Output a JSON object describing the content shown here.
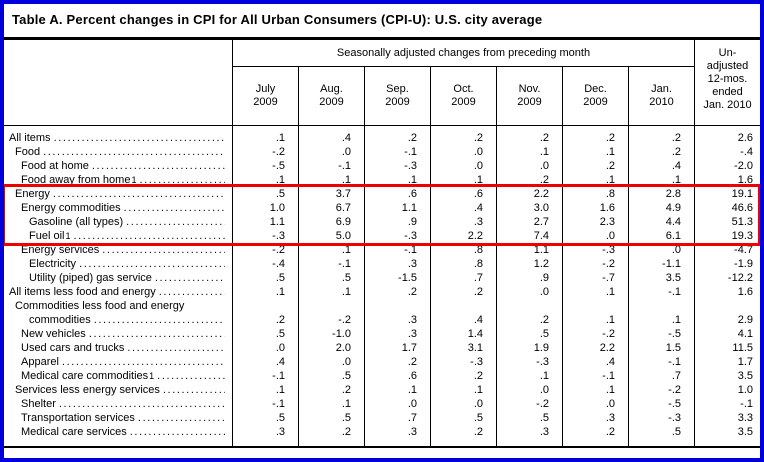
{
  "title": "Table A. Percent changes in CPI for All Urban Consumers (CPI-U): U.S. city average",
  "header": {
    "group_label": "Seasonally adjusted changes from preceding month",
    "columns": [
      [
        "July",
        "2009"
      ],
      [
        "Aug.",
        "2009"
      ],
      [
        "Sep.",
        "2009"
      ],
      [
        "Oct.",
        "2009"
      ],
      [
        "Nov.",
        "2009"
      ],
      [
        "Dec.",
        "2009"
      ],
      [
        "Jan.",
        "2010"
      ]
    ],
    "unadjusted": [
      "Un-",
      "adjusted",
      "12-mos.",
      "ended",
      "Jan. 2010"
    ]
  },
  "table": {
    "rows": [
      {
        "label": "All items",
        "indent": 0,
        "values": [
          ".1",
          ".4",
          ".2",
          ".2",
          ".2",
          ".2",
          ".2",
          "2.6"
        ]
      },
      {
        "label": "Food",
        "indent": 1,
        "values": [
          "-.2",
          ".0",
          "-.1",
          ".0",
          ".1",
          ".1",
          ".2",
          "-.4"
        ]
      },
      {
        "label": "Food at home",
        "indent": 2,
        "values": [
          "-.5",
          "-.1",
          "-.3",
          ".0",
          ".0",
          ".2",
          ".4",
          "-2.0"
        ]
      },
      {
        "label": "Food away from home",
        "sup": "1",
        "indent": 2,
        "values": [
          ".1",
          ".1",
          ".1",
          ".1",
          ".2",
          ".1",
          ".1",
          "1.6"
        ]
      },
      {
        "label": "Energy",
        "indent": 1,
        "values": [
          ".5",
          "3.7",
          ".6",
          ".6",
          "2.2",
          ".8",
          "2.8",
          "19.1"
        ]
      },
      {
        "label": "Energy commodities",
        "indent": 2,
        "values": [
          "1.0",
          "6.7",
          "1.1",
          ".4",
          "3.0",
          "1.6",
          "4.9",
          "46.6"
        ]
      },
      {
        "label": "Gasoline (all types)",
        "indent": 3,
        "values": [
          "1.1",
          "6.9",
          ".9",
          ".3",
          "2.7",
          "2.3",
          "4.4",
          "51.3"
        ]
      },
      {
        "label": "Fuel oil",
        "sup": "1",
        "indent": 3,
        "values": [
          "-.3",
          "5.0",
          "-.3",
          "2.2",
          "7.4",
          ".0",
          "6.1",
          "19.3"
        ]
      },
      {
        "label": "Energy services",
        "indent": 2,
        "values": [
          "-.2",
          ".1",
          "-.1",
          ".8",
          "1.1",
          "-.3",
          ".0",
          "-4.7"
        ]
      },
      {
        "label": "Electricity",
        "indent": 3,
        "values": [
          "-.4",
          "-.1",
          ".3",
          ".8",
          "1.2",
          "-.2",
          "-1.1",
          "-1.9"
        ]
      },
      {
        "label": "Utility (piped) gas service",
        "indent": 3,
        "values": [
          ".5",
          ".5",
          "-1.5",
          ".7",
          ".9",
          "-.7",
          "3.5",
          "-12.2"
        ]
      },
      {
        "label": "All items less food and energy",
        "indent": 0,
        "values": [
          ".1",
          ".1",
          ".2",
          ".2",
          ".0",
          ".1",
          "-.1",
          "1.6"
        ]
      },
      {
        "label": "Commodities less food and energy",
        "label2": "commodities",
        "indent": 1,
        "values": [
          ".2",
          "-.2",
          ".3",
          ".4",
          ".2",
          ".1",
          ".1",
          "2.9"
        ]
      },
      {
        "label": "New vehicles",
        "indent": 2,
        "values": [
          ".5",
          "-1.0",
          ".3",
          "1.4",
          ".5",
          "-.2",
          "-.5",
          "4.1"
        ]
      },
      {
        "label": "Used cars and trucks",
        "indent": 2,
        "values": [
          ".0",
          "2.0",
          "1.7",
          "3.1",
          "1.9",
          "2.2",
          "1.5",
          "11.5"
        ]
      },
      {
        "label": "Apparel",
        "indent": 2,
        "values": [
          ".4",
          ".0",
          ".2",
          "-.3",
          "-.3",
          ".4",
          "-.1",
          "1.7"
        ]
      },
      {
        "label": "Medical care commodities",
        "sup": "1",
        "indent": 2,
        "values": [
          "-.1",
          ".5",
          ".6",
          ".2",
          ".1",
          "-.1",
          ".7",
          "3.5"
        ]
      },
      {
        "label": "Services less energy services",
        "indent": 1,
        "values": [
          ".1",
          ".2",
          ".1",
          ".1",
          ".0",
          ".1",
          "-.2",
          "1.0"
        ]
      },
      {
        "label": "Shelter",
        "indent": 2,
        "values": [
          "-.1",
          ".1",
          ".0",
          ".0",
          "-.2",
          ".0",
          "-.5",
          "-.1"
        ]
      },
      {
        "label": "Transportation services",
        "indent": 2,
        "values": [
          ".5",
          ".5",
          ".7",
          ".5",
          ".5",
          ".3",
          "-.3",
          "3.3"
        ]
      },
      {
        "label": "Medical care services",
        "indent": 2,
        "values": [
          ".3",
          ".2",
          ".3",
          ".2",
          ".3",
          ".2",
          ".5",
          "3.5"
        ]
      }
    ],
    "highlight_rows": {
      "start": 4,
      "end": 7
    }
  },
  "annotation_colors": {
    "frame": "#0000dd",
    "highlight": "#ee0000"
  }
}
